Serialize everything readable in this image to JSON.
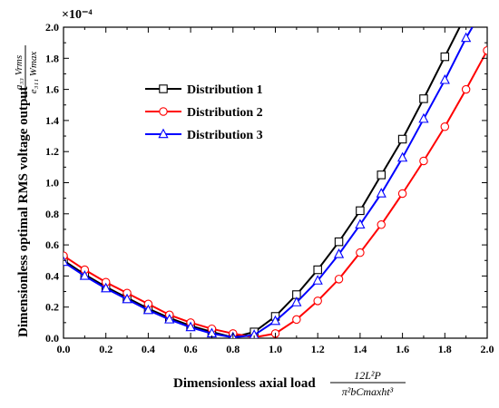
{
  "chart_data": {
    "type": "line",
    "title": "",
    "xlabel": "Dimensionless axial load",
    "xlabel_expr": {
      "numerator": "12L²P",
      "denominator": "π²bCmaxht³"
    },
    "ylabel": "Dimensionless optimal RMS voltage output",
    "ylabel_expr": {
      "numerator": "a₃₃ Vrms",
      "denominator": "e₃₁₁ Wmax"
    },
    "y_multiplier": "×10⁻⁴",
    "xlim": [
      0.0,
      2.0
    ],
    "ylim": [
      0.0,
      2.0
    ],
    "xticks": [
      "0.0",
      "0.2",
      "0.4",
      "0.6",
      "0.8",
      "1.0",
      "1.2",
      "1.4",
      "1.6",
      "1.8",
      "2.0"
    ],
    "yticks": [
      "0.0",
      "0.2",
      "0.4",
      "0.6",
      "0.8",
      "1.0",
      "1.2",
      "1.4",
      "1.6",
      "1.8",
      "2.0"
    ],
    "grid": false,
    "legend_position": "upper-left",
    "series": [
      {
        "name": "Distribution 1",
        "color": "#000000",
        "marker": "square",
        "x": [
          0.0,
          0.1,
          0.2,
          0.3,
          0.4,
          0.5,
          0.6,
          0.7,
          0.8,
          0.9,
          1.0,
          1.1,
          1.2,
          1.3,
          1.4,
          1.5,
          1.6,
          1.7,
          1.8,
          1.87
        ],
        "y": [
          0.5,
          0.41,
          0.33,
          0.26,
          0.19,
          0.13,
          0.08,
          0.04,
          0.005,
          0.04,
          0.14,
          0.28,
          0.44,
          0.62,
          0.82,
          1.05,
          1.28,
          1.54,
          1.81,
          2.0
        ]
      },
      {
        "name": "Distribution 2",
        "color": "#ff0000",
        "marker": "circle",
        "x": [
          0.0,
          0.1,
          0.2,
          0.3,
          0.4,
          0.5,
          0.6,
          0.7,
          0.8,
          0.9,
          1.0,
          1.1,
          1.2,
          1.3,
          1.4,
          1.5,
          1.6,
          1.7,
          1.8,
          1.9,
          2.0
        ],
        "y": [
          0.53,
          0.44,
          0.36,
          0.29,
          0.22,
          0.15,
          0.1,
          0.06,
          0.03,
          0.005,
          0.03,
          0.12,
          0.24,
          0.38,
          0.55,
          0.73,
          0.93,
          1.14,
          1.36,
          1.6,
          1.85
        ]
      },
      {
        "name": "Distribution 3",
        "color": "#0000ff",
        "marker": "triangle",
        "x": [
          0.0,
          0.1,
          0.2,
          0.3,
          0.4,
          0.5,
          0.6,
          0.7,
          0.8,
          0.9,
          1.0,
          1.1,
          1.2,
          1.3,
          1.4,
          1.5,
          1.6,
          1.7,
          1.8,
          1.9,
          1.93
        ],
        "y": [
          0.49,
          0.4,
          0.32,
          0.25,
          0.18,
          0.12,
          0.07,
          0.03,
          0.005,
          0.02,
          0.11,
          0.23,
          0.37,
          0.54,
          0.73,
          0.93,
          1.16,
          1.41,
          1.66,
          1.93,
          2.0
        ]
      }
    ]
  }
}
